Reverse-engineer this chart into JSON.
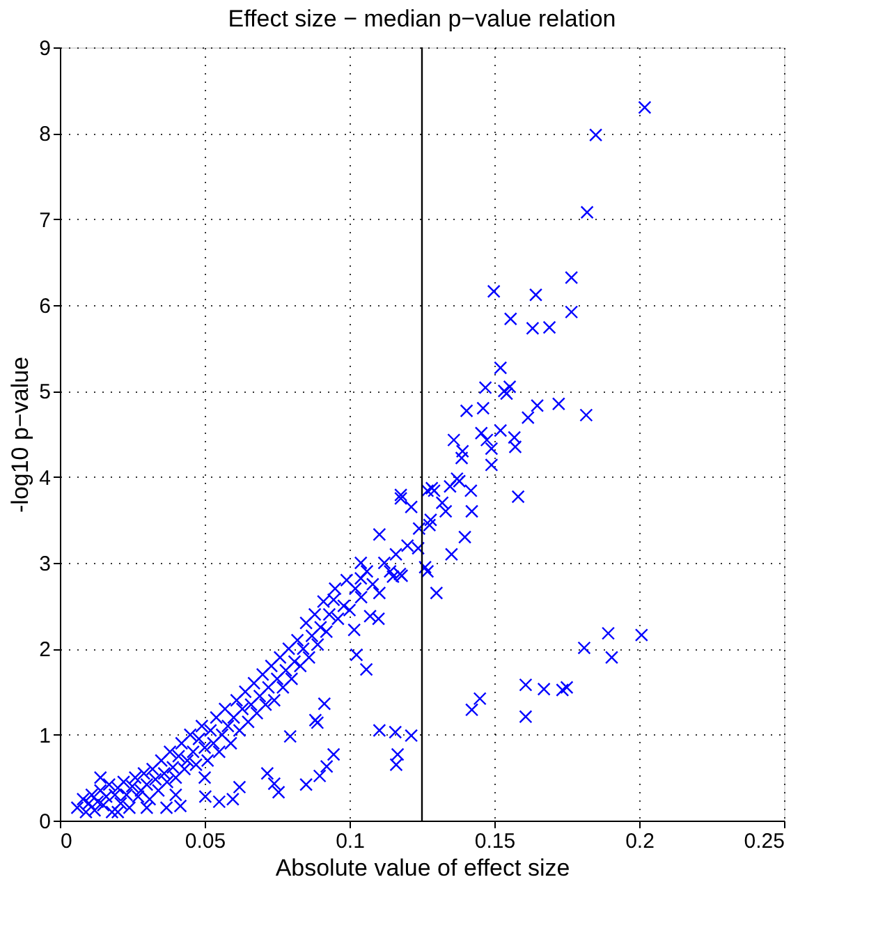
{
  "chart_data": {
    "type": "scatter",
    "title": "Effect size − median p−value relation",
    "xlabel": "Absolute value of effect size",
    "ylabel": "-log10 p−value",
    "x": [
      0.006,
      0.008,
      0.009,
      0.01,
      0.011,
      0.012,
      0.013,
      0.014,
      0.015,
      0.016,
      0.017,
      0.018,
      0.019,
      0.02,
      0.021,
      0.022,
      0.023,
      0.024,
      0.025,
      0.026,
      0.027,
      0.028,
      0.029,
      0.03,
      0.031,
      0.032,
      0.033,
      0.034,
      0.035,
      0.036,
      0.037,
      0.038,
      0.039,
      0.04,
      0.041,
      0.042,
      0.043,
      0.044,
      0.045,
      0.046,
      0.047,
      0.048,
      0.049,
      0.05,
      0.051,
      0.052,
      0.053,
      0.054,
      0.055,
      0.056,
      0.057,
      0.058,
      0.059,
      0.06,
      0.061,
      0.062,
      0.063,
      0.064,
      0.065,
      0.066,
      0.067,
      0.068,
      0.069,
      0.07,
      0.071,
      0.072,
      0.073,
      0.074,
      0.075,
      0.076,
      0.077,
      0.078,
      0.079,
      0.08,
      0.081,
      0.082,
      0.083,
      0.084,
      0.085,
      0.086,
      0.087,
      0.088,
      0.089,
      0.09,
      0.091,
      0.092,
      0.093,
      0.095,
      0.096,
      0.098,
      0.099,
      0.1,
      0.102,
      0.104,
      0.106,
      0.108,
      0.112,
      0.114,
      0.116,
      0.118,
      0.12,
      0.124,
      0.128,
      0.132,
      0.014,
      0.02,
      0.03,
      0.04,
      0.05,
      0.2019,
      0.185,
      0.182,
      0.1766,
      0.1498,
      0.1643,
      0.1766,
      0.1556,
      0.1632,
      0.169,
      0.1521,
      0.1469,
      0.1534,
      0.1553,
      0.1542,
      0.1404,
      0.1461,
      0.1648,
      0.1616,
      0.1722,
      0.1817,
      0.136,
      0.139,
      0.1387,
      0.1455,
      0.1474,
      0.1521,
      0.1569,
      0.1572,
      0.149,
      0.149,
      0.1371,
      0.1347,
      0.1419,
      0.1292,
      0.1269,
      0.1177,
      0.1582,
      0.1398,
      0.1352,
      0.1422,
      0.1379,
      0.1332,
      0.1284,
      0.1276,
      0.13,
      0.1269,
      0.1261,
      0.1237,
      0.1213,
      0.1177,
      0.1103,
      0.1174,
      0.115,
      0.1039,
      0.1039,
      0.1103,
      0.1071,
      0.11,
      0.1016,
      0.1058,
      0.1024,
      0.0945,
      0.0913,
      0.0882,
      0.1103,
      0.1158,
      0.1213,
      0.1166,
      0.1161,
      0.0945,
      0.0921,
      0.0897,
      0.085,
      0.1422,
      0.145,
      0.1608,
      0.1608,
      0.1671,
      0.1735,
      0.175,
      0.181,
      0.1893,
      0.1905,
      0.2008,
      0.0716,
      0.074,
      0.0755,
      0.0795,
      0.0889,
      0.062,
      0.0597,
      0.055,
      0.0502,
      0.0416,
      0.0368
    ],
    "values": [
      0.15,
      0.25,
      0.1,
      0.2,
      0.3,
      0.12,
      0.22,
      0.35,
      0.18,
      0.28,
      0.42,
      0.1,
      0.3,
      0.38,
      0.2,
      0.45,
      0.3,
      0.15,
      0.4,
      0.5,
      0.28,
      0.35,
      0.55,
      0.42,
      0.25,
      0.6,
      0.48,
      0.35,
      0.7,
      0.55,
      0.45,
      0.8,
      0.62,
      0.5,
      0.75,
      0.9,
      0.6,
      0.7,
      1.0,
      0.8,
      0.65,
      0.95,
      1.1,
      0.85,
      0.7,
      1.05,
      0.9,
      1.2,
      0.8,
      1.0,
      1.3,
      1.1,
      0.9,
      1.2,
      1.4,
      1.05,
      1.3,
      1.5,
      1.15,
      1.35,
      1.6,
      1.25,
      1.45,
      1.7,
      1.35,
      1.55,
      1.8,
      1.4,
      1.65,
      1.9,
      1.55,
      1.75,
      2.0,
      1.65,
      1.85,
      2.1,
      1.8,
      2.0,
      2.3,
      1.9,
      2.15,
      2.4,
      2.05,
      2.25,
      2.55,
      2.2,
      2.4,
      2.7,
      2.35,
      2.5,
      2.8,
      2.45,
      2.7,
      2.6,
      2.9,
      2.75,
      3.0,
      2.9,
      3.1,
      2.85,
      3.2,
      3.4,
      3.5,
      3.7,
      0.5,
      0.1,
      0.15,
      0.3,
      0.5,
      8.3,
      7.98,
      7.08,
      6.32,
      6.16,
      6.12,
      5.92,
      5.84,
      5.73,
      5.74,
      5.27,
      5.04,
      5.0,
      5.05,
      4.97,
      4.77,
      4.8,
      4.83,
      4.69,
      4.85,
      4.72,
      4.43,
      4.3,
      4.22,
      4.51,
      4.43,
      4.54,
      4.46,
      4.35,
      4.33,
      4.14,
      3.98,
      3.89,
      3.84,
      3.84,
      3.84,
      3.79,
      3.77,
      3.3,
      3.1,
      3.6,
      3.95,
      3.6,
      3.87,
      3.44,
      2.65,
      2.9,
      2.95,
      3.17,
      3.65,
      3.75,
      3.33,
      2.87,
      2.84,
      3.0,
      2.82,
      2.65,
      2.38,
      2.35,
      2.22,
      1.76,
      1.93,
      2.57,
      1.36,
      1.17,
      1.05,
      1.03,
      0.99,
      0.77,
      0.65,
      0.77,
      0.63,
      0.52,
      0.42,
      1.29,
      1.42,
      1.21,
      1.58,
      1.53,
      1.52,
      1.55,
      2.01,
      2.18,
      1.9,
      2.16,
      0.55,
      0.43,
      0.33,
      0.98,
      1.14,
      0.39,
      0.25,
      0.22,
      0.28,
      0.17,
      0.15
    ],
    "color": "#0000ff",
    "marker": "cross",
    "grid": true,
    "xlim": [
      0,
      0.25
    ],
    "xticks": [
      0,
      0.05,
      0.1,
      0.15,
      0.2,
      0.25
    ],
    "ylim": [
      0,
      9
    ],
    "yticks": [
      0,
      1,
      2,
      3,
      4,
      5,
      6,
      7,
      8,
      9
    ],
    "ref_lines": [
      {
        "axis": "x",
        "value": 0.125,
        "color": "#000000"
      }
    ]
  }
}
